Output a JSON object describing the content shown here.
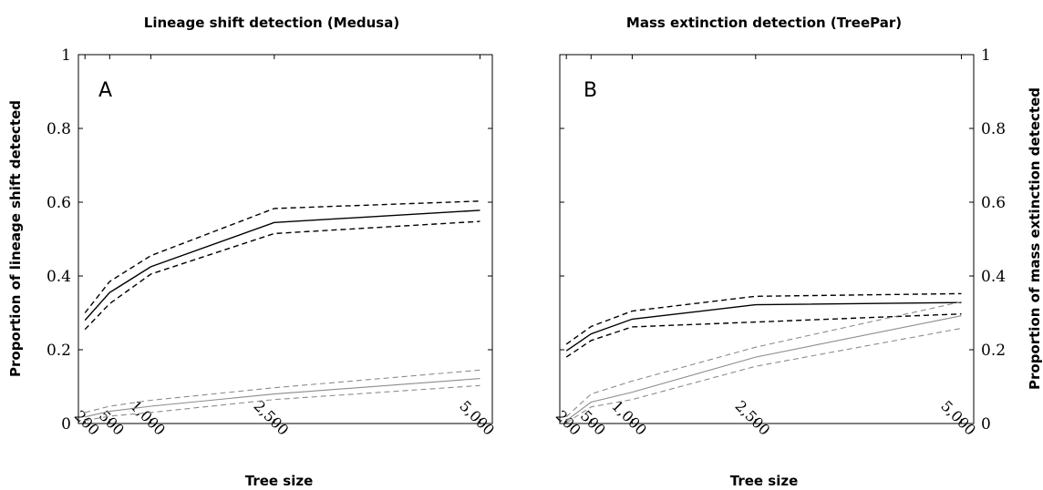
{
  "chart_data": [
    {
      "type": "line",
      "panel_letter": "A",
      "title": "Lineage shift detection (Medusa)",
      "xlabel": "Tree size",
      "ylabel": "Proportion of lineage shift detected",
      "y_axis_side": "left",
      "xlim": [
        120,
        5150
      ],
      "ylim": [
        0,
        1
      ],
      "x_ticks": [
        200,
        500,
        1000,
        2500,
        5000
      ],
      "x_tick_labels": [
        "200",
        "500",
        "1,000",
        "2,500",
        "5,000"
      ],
      "y_ticks": [
        0,
        0.2,
        0.4,
        0.6,
        0.8,
        1
      ],
      "y_tick_labels": [
        "0",
        "0.2",
        "0.4",
        "0.6",
        "0.8",
        "1"
      ],
      "x": [
        200,
        500,
        1000,
        2500,
        5000
      ],
      "series": [
        {
          "values": [
            0.28,
            0.355,
            0.425,
            0.545,
            0.578
          ],
          "color": "#000000",
          "dashed": false
        },
        {
          "values": [
            0.3,
            0.385,
            0.455,
            0.583,
            0.603
          ],
          "color": "#000000",
          "dashed": true
        },
        {
          "values": [
            0.255,
            0.325,
            0.405,
            0.515,
            0.548
          ],
          "color": "#000000",
          "dashed": true
        },
        {
          "values": [
            0.018,
            0.033,
            0.047,
            0.08,
            0.122
          ],
          "color": "#8c8c8c",
          "dashed": false
        },
        {
          "values": [
            0.03,
            0.047,
            0.063,
            0.097,
            0.145
          ],
          "color": "#8c8c8c",
          "dashed": true
        },
        {
          "values": [
            0.008,
            0.02,
            0.03,
            0.065,
            0.103
          ],
          "color": "#8c8c8c",
          "dashed": true
        }
      ]
    },
    {
      "type": "line",
      "panel_letter": "B",
      "title": "Mass extinction detection (TreePar)",
      "xlabel": "Tree size",
      "ylabel": "Proportion of mass extinction detected",
      "y_axis_side": "right",
      "xlim": [
        120,
        5150
      ],
      "ylim": [
        0,
        1
      ],
      "x_ticks": [
        200,
        500,
        1000,
        2500,
        5000
      ],
      "x_tick_labels": [
        "200",
        "500",
        "1,000",
        "2,500",
        "5,000"
      ],
      "y_ticks": [
        0,
        0.2,
        0.4,
        0.6,
        0.8,
        1
      ],
      "y_tick_labels": [
        "0",
        "0.2",
        "0.4",
        "0.6",
        "0.8",
        "1"
      ],
      "x": [
        200,
        500,
        1000,
        2500,
        5000
      ],
      "series": [
        {
          "values": [
            0.197,
            0.243,
            0.283,
            0.322,
            0.328
          ],
          "color": "#000000",
          "dashed": false
        },
        {
          "values": [
            0.215,
            0.263,
            0.305,
            0.345,
            0.352
          ],
          "color": "#000000",
          "dashed": true
        },
        {
          "values": [
            0.18,
            0.225,
            0.262,
            0.275,
            0.297
          ],
          "color": "#000000",
          "dashed": true
        },
        {
          "values": [
            0.008,
            0.058,
            0.085,
            0.18,
            0.292
          ],
          "color": "#8c8c8c",
          "dashed": false
        },
        {
          "values": [
            0.018,
            0.08,
            0.115,
            0.207,
            0.33
          ],
          "color": "#8c8c8c",
          "dashed": true
        },
        {
          "values": [
            0.002,
            0.045,
            0.065,
            0.155,
            0.258
          ],
          "color": "#8c8c8c",
          "dashed": true
        }
      ]
    }
  ]
}
